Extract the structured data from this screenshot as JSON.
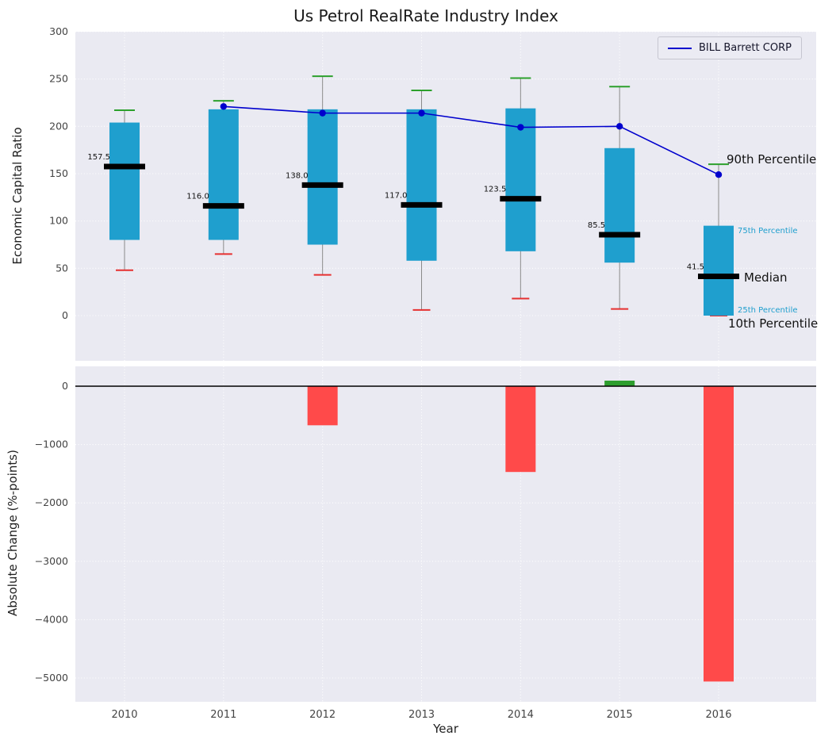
{
  "title": "Us Petrol RealRate Industry Index",
  "axes": {
    "top_ylabel": "Economic Capital Ratio",
    "bottom_ylabel": "Absolute Change (%-points)",
    "xlabel": "Year"
  },
  "legend": {
    "series_label": "BILL Barrett CORP",
    "position": "upper right"
  },
  "annotations": {
    "p90": "90th Percentile",
    "p75": "75th Percentile",
    "median": "Median",
    "p25": "25th Percentile",
    "p10": "10th Percentile"
  },
  "colors": {
    "panel_bg": "#eaeaf2",
    "box": "#1f9fce",
    "cap_top": "#2ca02c",
    "cap_bottom": "#e63030",
    "median": "#000000",
    "company_line": "#0000cd",
    "bar_negative": "#ff4a4a",
    "bar_positive": "#2e9e2e",
    "tick_label": "#444444",
    "whisker": "#8a8a8a"
  },
  "chart_data": [
    {
      "type": "boxplot",
      "title": "Us Petrol RealRate Industry Index",
      "ylabel": "Economic Capital Ratio",
      "ylim": [
        -48,
        300
      ],
      "yticks": [
        0,
        50,
        100,
        150,
        200,
        250,
        300
      ],
      "grid": true,
      "legend_position": "upper right",
      "categories": [
        2010,
        2011,
        2012,
        2013,
        2014,
        2015,
        2016
      ],
      "percentiles": {
        "p10": [
          48,
          65,
          43,
          6,
          18,
          7,
          0
        ],
        "p25": [
          80,
          80,
          75,
          58,
          68,
          56,
          0
        ],
        "median": [
          157.5,
          116.0,
          138.0,
          117.0,
          123.5,
          85.5,
          41.5
        ],
        "p75": [
          204,
          218,
          218,
          218,
          219,
          177,
          95
        ],
        "p90": [
          217,
          227,
          253,
          238,
          251,
          242,
          160
        ]
      },
      "median_labels": [
        "157.5",
        "116.0",
        "138.0",
        "117.0",
        "123.5",
        "85.5",
        "41.5"
      ],
      "company_line": {
        "name": "BILL Barrett CORP",
        "x": [
          2011,
          2012,
          2013,
          2014,
          2015,
          2016
        ],
        "values": [
          221,
          214,
          214,
          199,
          200,
          149
        ]
      }
    },
    {
      "type": "bar",
      "ylabel": "Absolute Change (%-points)",
      "xlabel": "Year",
      "ylim": [
        -5400,
        340
      ],
      "yticks": [
        0,
        -1000,
        -2000,
        -3000,
        -4000,
        -5000
      ],
      "grid": true,
      "categories": [
        2010,
        2011,
        2012,
        2013,
        2014,
        2015,
        2016
      ],
      "values": [
        0,
        0,
        -670,
        0,
        -1470,
        95,
        -5060
      ]
    }
  ]
}
